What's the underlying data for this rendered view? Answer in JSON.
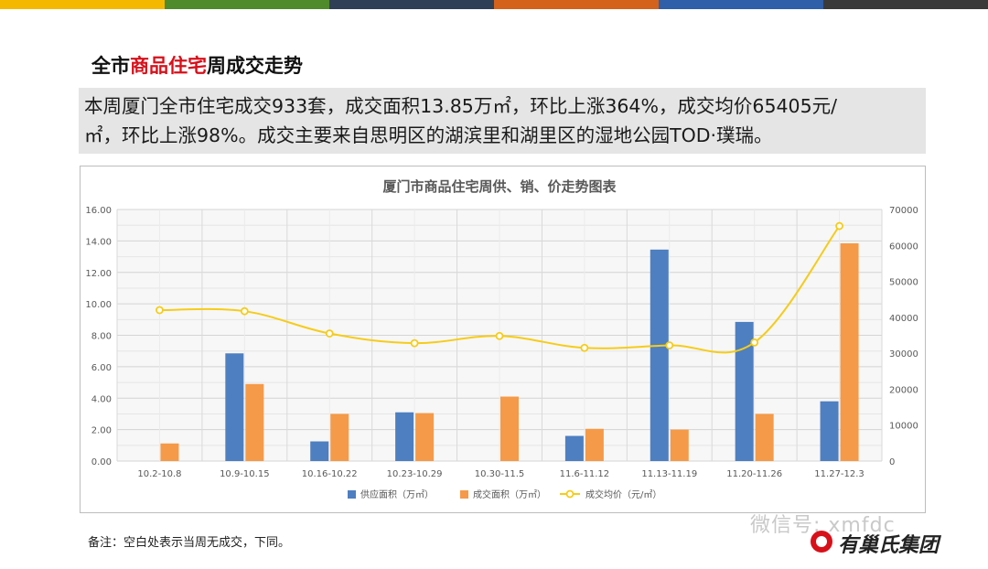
{
  "theme": {
    "top_bar_colors": [
      "#f5b800",
      "#4f8a2b",
      "#2f3f55",
      "#d4621a",
      "#2e5fa8",
      "#3a3a3a"
    ],
    "supply_color": "#4e7fc1",
    "sold_color": "#f59a48",
    "price_color": "#f5cc1a",
    "highlight_color": "#d8101a"
  },
  "header": {
    "title_prefix": "全市",
    "title_highlight": "商品住宅",
    "title_suffix": "周成交走势"
  },
  "summary": {
    "line1": "本周厦门全市住宅成交933套，成交面积13.85万㎡，环比上涨364%，成交均价65405元/",
    "line2": "㎡，环比上涨98%。成交主要来自思明区的湖滨里和湖里区的湿地公园TOD·璞瑞。"
  },
  "chart_data": {
    "type": "bar",
    "title": "厦门市商品住宅周供、销、价走势图表",
    "categories": [
      "10.2-10.8",
      "10.9-10.15",
      "10.16-10.22",
      "10.23-10.29",
      "10.30-11.5",
      "11.6-11.12",
      "11.13-11.19",
      "11.20-11.26",
      "11.27-12.3"
    ],
    "series": [
      {
        "name": "供应面积（万㎡）",
        "type": "bar",
        "axis": "left",
        "values": [
          null,
          6.85,
          1.25,
          3.1,
          null,
          1.6,
          13.45,
          8.85,
          3.8
        ]
      },
      {
        "name": "成交面积（万㎡）",
        "type": "bar",
        "axis": "left",
        "values": [
          1.12,
          4.9,
          3.0,
          3.05,
          4.1,
          2.05,
          2.0,
          3.0,
          13.85
        ]
      },
      {
        "name": "成交均价（元/㎡）",
        "type": "line",
        "axis": "right",
        "values": [
          42000,
          41700,
          35500,
          32800,
          34800,
          31500,
          32200,
          33000,
          65405
        ]
      }
    ],
    "yleft": {
      "min": 0,
      "max": 16,
      "step": 2,
      "ticks": [
        "0.00",
        "2.00",
        "4.00",
        "6.00",
        "8.00",
        "10.00",
        "12.00",
        "14.00",
        "16.00"
      ]
    },
    "yright": {
      "min": 0,
      "max": 70000,
      "step": 10000,
      "ticks": [
        "0",
        "10000",
        "20000",
        "30000",
        "40000",
        "50000",
        "60000",
        "70000"
      ]
    },
    "grid": true,
    "legend_position": "bottom"
  },
  "footer": {
    "note": "备注：空白处表示当周无成交，下同。",
    "watermark": "微信号: xmfdc",
    "logo_text": "有巢氏集团"
  }
}
